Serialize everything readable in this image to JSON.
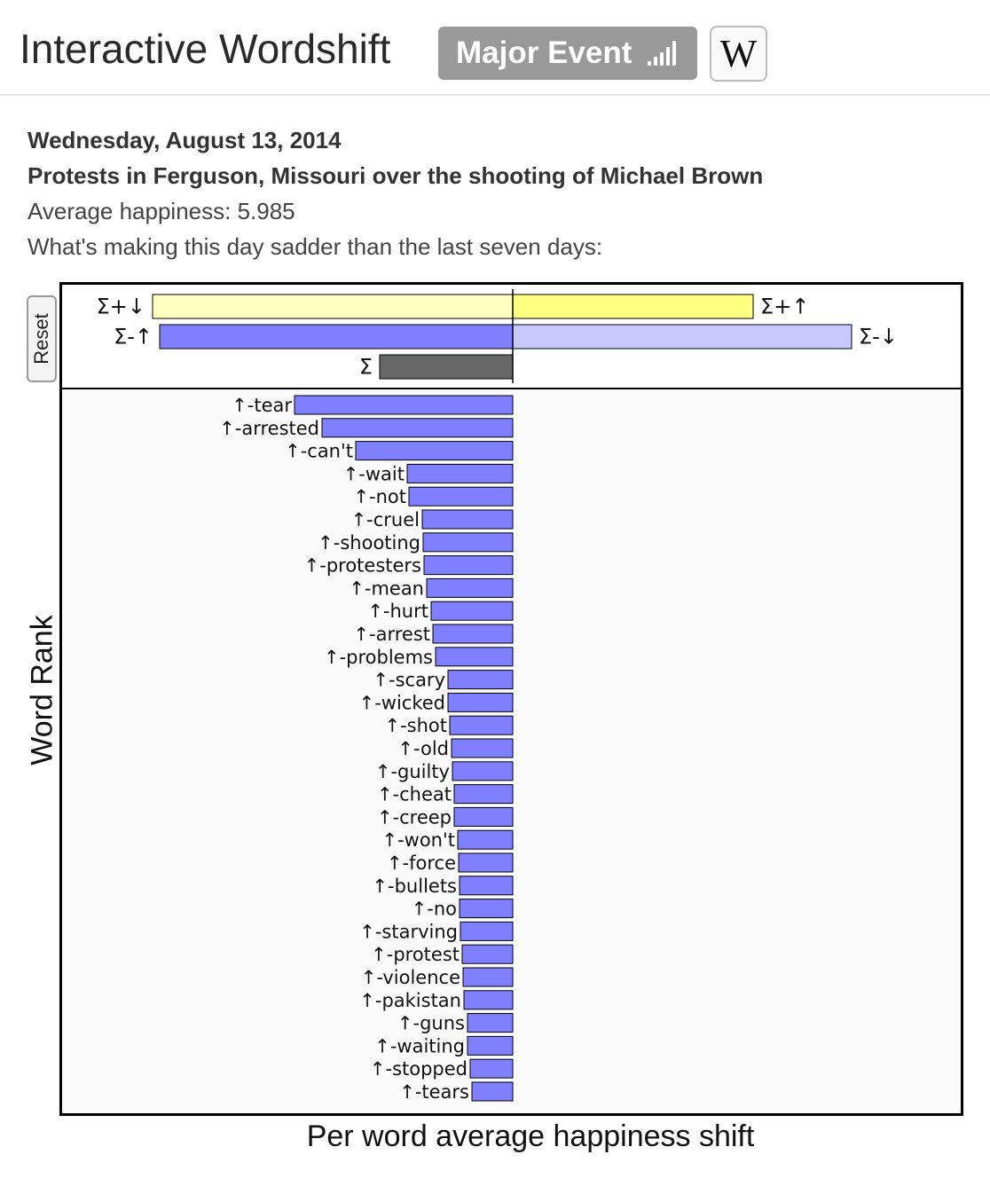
{
  "header": {
    "title": "Interactive Wordshift",
    "event_button_label": "Major Event",
    "wiki_button_label": "W"
  },
  "info": {
    "date": "Wednesday, August 13, 2014",
    "event": "Protests in Ferguson, Missouri over the shooting of Michael Brown",
    "average_happiness": "Average happiness: 5.985",
    "comparison": "What's making this day sadder than the last seven days:"
  },
  "controls": {
    "reset_label": "Reset"
  },
  "chart_data": {
    "type": "bar",
    "orientation": "horizontal",
    "xlabel": "Per word average happiness shift",
    "ylabel": "Word Rank",
    "summary": [
      {
        "label": "Σ+↓",
        "value": -406
      },
      {
        "label": "Σ+↑",
        "value": 271
      },
      {
        "label": "Σ-↑",
        "value": -398
      },
      {
        "label": "Σ-↓",
        "value": 382
      },
      {
        "label": "Σ",
        "value": -150
      }
    ],
    "categories": [
      "↑-tear",
      "↑-arrested",
      "↑-can't",
      "↑-wait",
      "↑-not",
      "↑-cruel",
      "↑-shooting",
      "↑-protesters",
      "↑-mean",
      "↑-hurt",
      "↑-arrest",
      "↑-problems",
      "↑-scary",
      "↑-wicked",
      "↑-shot",
      "↑-old",
      "↑-guilty",
      "↑-cheat",
      "↑-creep",
      "↑-won't",
      "↑-force",
      "↑-bullets",
      "↑-no",
      "↑-starving",
      "↑-protest",
      "↑-violence",
      "↑-pakistan",
      "↑-guns",
      "↑-waiting",
      "↑-stopped",
      "↑-tears"
    ],
    "values": [
      -246,
      -215,
      -177,
      -119,
      -117,
      -102,
      -101,
      -100,
      -97,
      -92,
      -90,
      -87,
      -73,
      -73,
      -71,
      -69,
      -68,
      -66,
      -66,
      -62,
      -61,
      -60,
      -60,
      -59,
      -57,
      -56,
      -55,
      -51,
      -51,
      -48,
      -46
    ],
    "colors": {
      "positive_down": "#ffffc0",
      "positive_up": "#ffff80",
      "negative_up": "#8080ff",
      "negative_down": "#c8c8ff",
      "total": "#666666",
      "word_bar": "#8080ff"
    }
  }
}
